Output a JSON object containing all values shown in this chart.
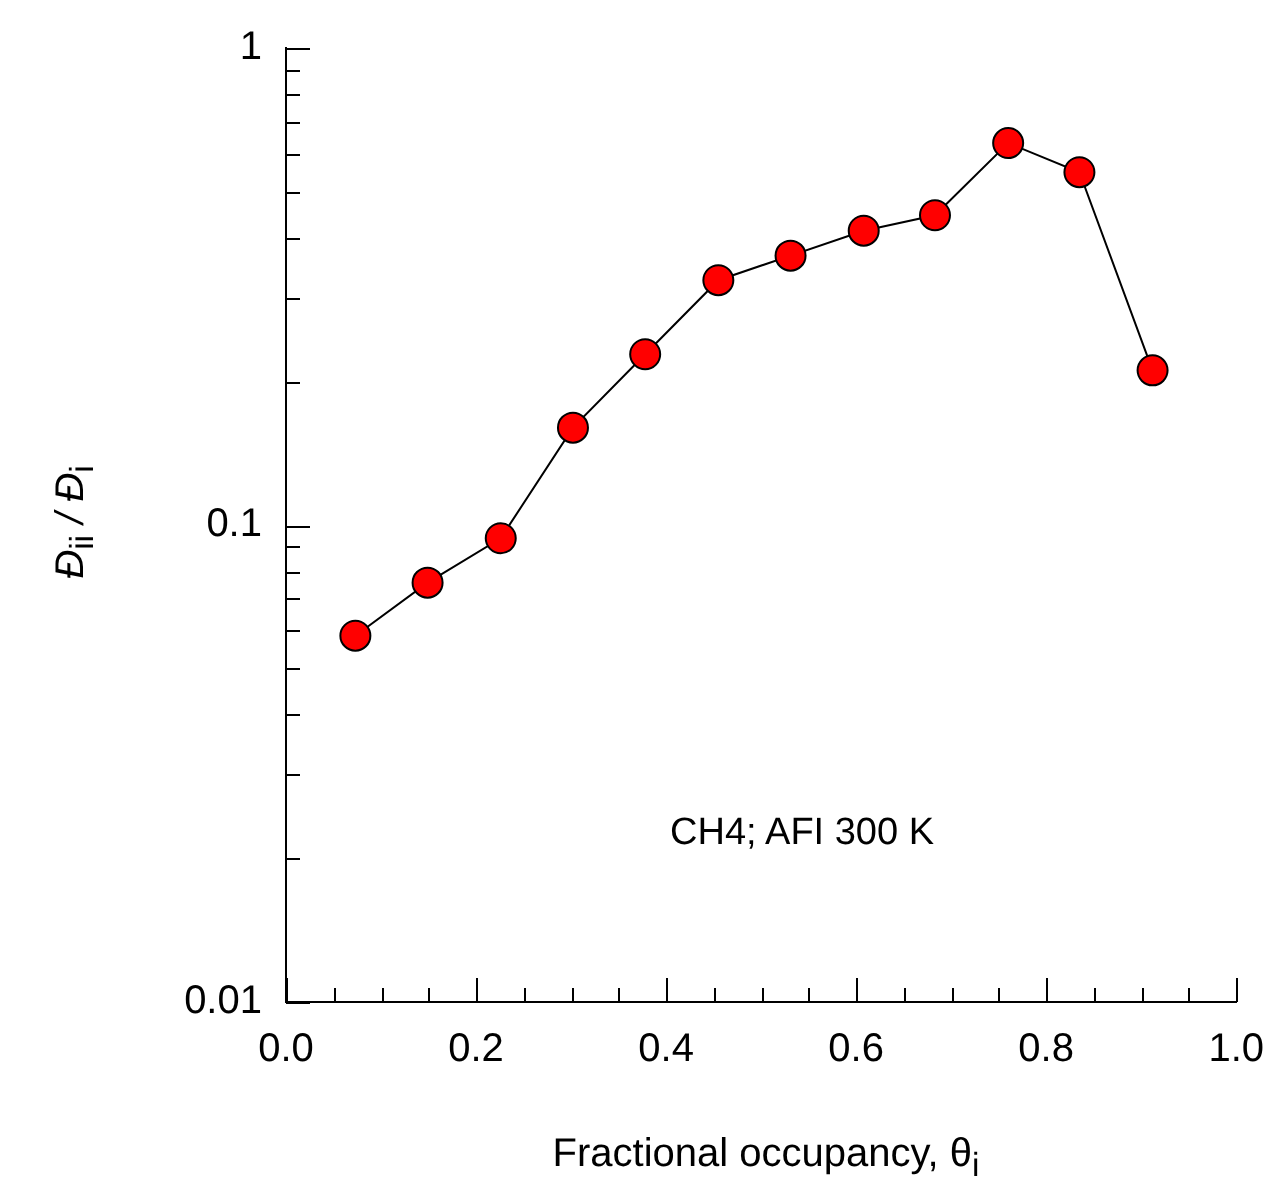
{
  "chart_data": {
    "type": "line",
    "xlabel": "Fractional occupancy, θ$_{i}$",
    "ylabel": "Đ$_{ii}$ / Đ$_{i}$",
    "annotations": [
      "CH4; AFI 300 K"
    ],
    "log": "y",
    "marker": "circle",
    "line_style": "solid",
    "xlim": [
      0,
      1
    ],
    "ylim": [
      0.01,
      1
    ],
    "xticks": [
      {
        "value": 0,
        "label": "0.0"
      },
      {
        "value": 0.05,
        "label": null
      },
      {
        "value": 0.1,
        "label": null
      },
      {
        "value": 0.15,
        "label": null
      },
      {
        "value": 0.2,
        "label": "0.2"
      },
      {
        "value": 0.25,
        "label": null
      },
      {
        "value": 0.3,
        "label": null
      },
      {
        "value": 0.35,
        "label": null
      },
      {
        "value": 0.4,
        "label": "0.4"
      },
      {
        "value": 0.45,
        "label": null
      },
      {
        "value": 0.5,
        "label": null
      },
      {
        "value": 0.55,
        "label": null
      },
      {
        "value": 0.6,
        "label": "0.6"
      },
      {
        "value": 0.65,
        "label": null
      },
      {
        "value": 0.7,
        "label": null
      },
      {
        "value": 0.75,
        "label": null
      },
      {
        "value": 0.8,
        "label": "0.8"
      },
      {
        "value": 0.85,
        "label": null
      },
      {
        "value": 0.9,
        "label": null
      },
      {
        "value": 0.95,
        "label": null
      },
      {
        "value": 1,
        "label": "1.0"
      }
    ],
    "yticks": [
      0.01,
      {
        "value": 0.02,
        "label": null
      },
      {
        "value": 0.03,
        "label": null
      },
      {
        "value": 0.04,
        "label": null
      },
      {
        "value": 0.05,
        "label": null
      },
      {
        "value": 0.06,
        "label": null
      },
      {
        "value": 0.07,
        "label": null
      },
      {
        "value": 0.08,
        "label": null
      },
      {
        "value": 0.09,
        "label": null
      },
      0.1,
      {
        "value": 0.2,
        "label": null
      },
      {
        "value": 0.3,
        "label": null
      },
      {
        "value": 0.4,
        "label": null
      },
      {
        "value": 0.5,
        "label": null
      },
      {
        "value": 0.6,
        "label": null
      },
      {
        "value": 0.7,
        "label": null
      },
      {
        "value": 0.8,
        "label": null
      },
      {
        "value": 0.9,
        "label": null
      },
      1
    ],
    "series": [
      {
        "color": "#ff0000",
        "x": [
          0.073,
          0.149,
          0.226,
          0.302,
          0.378,
          0.455,
          0.531,
          0.608,
          0.683,
          0.76,
          0.835,
          0.912
        ],
        "values": [
          0.0586,
          0.0757,
          0.0938,
          0.16,
          0.228,
          0.326,
          0.367,
          0.414,
          0.446,
          0.632,
          0.549,
          0.211
        ]
      }
    ]
  }
}
